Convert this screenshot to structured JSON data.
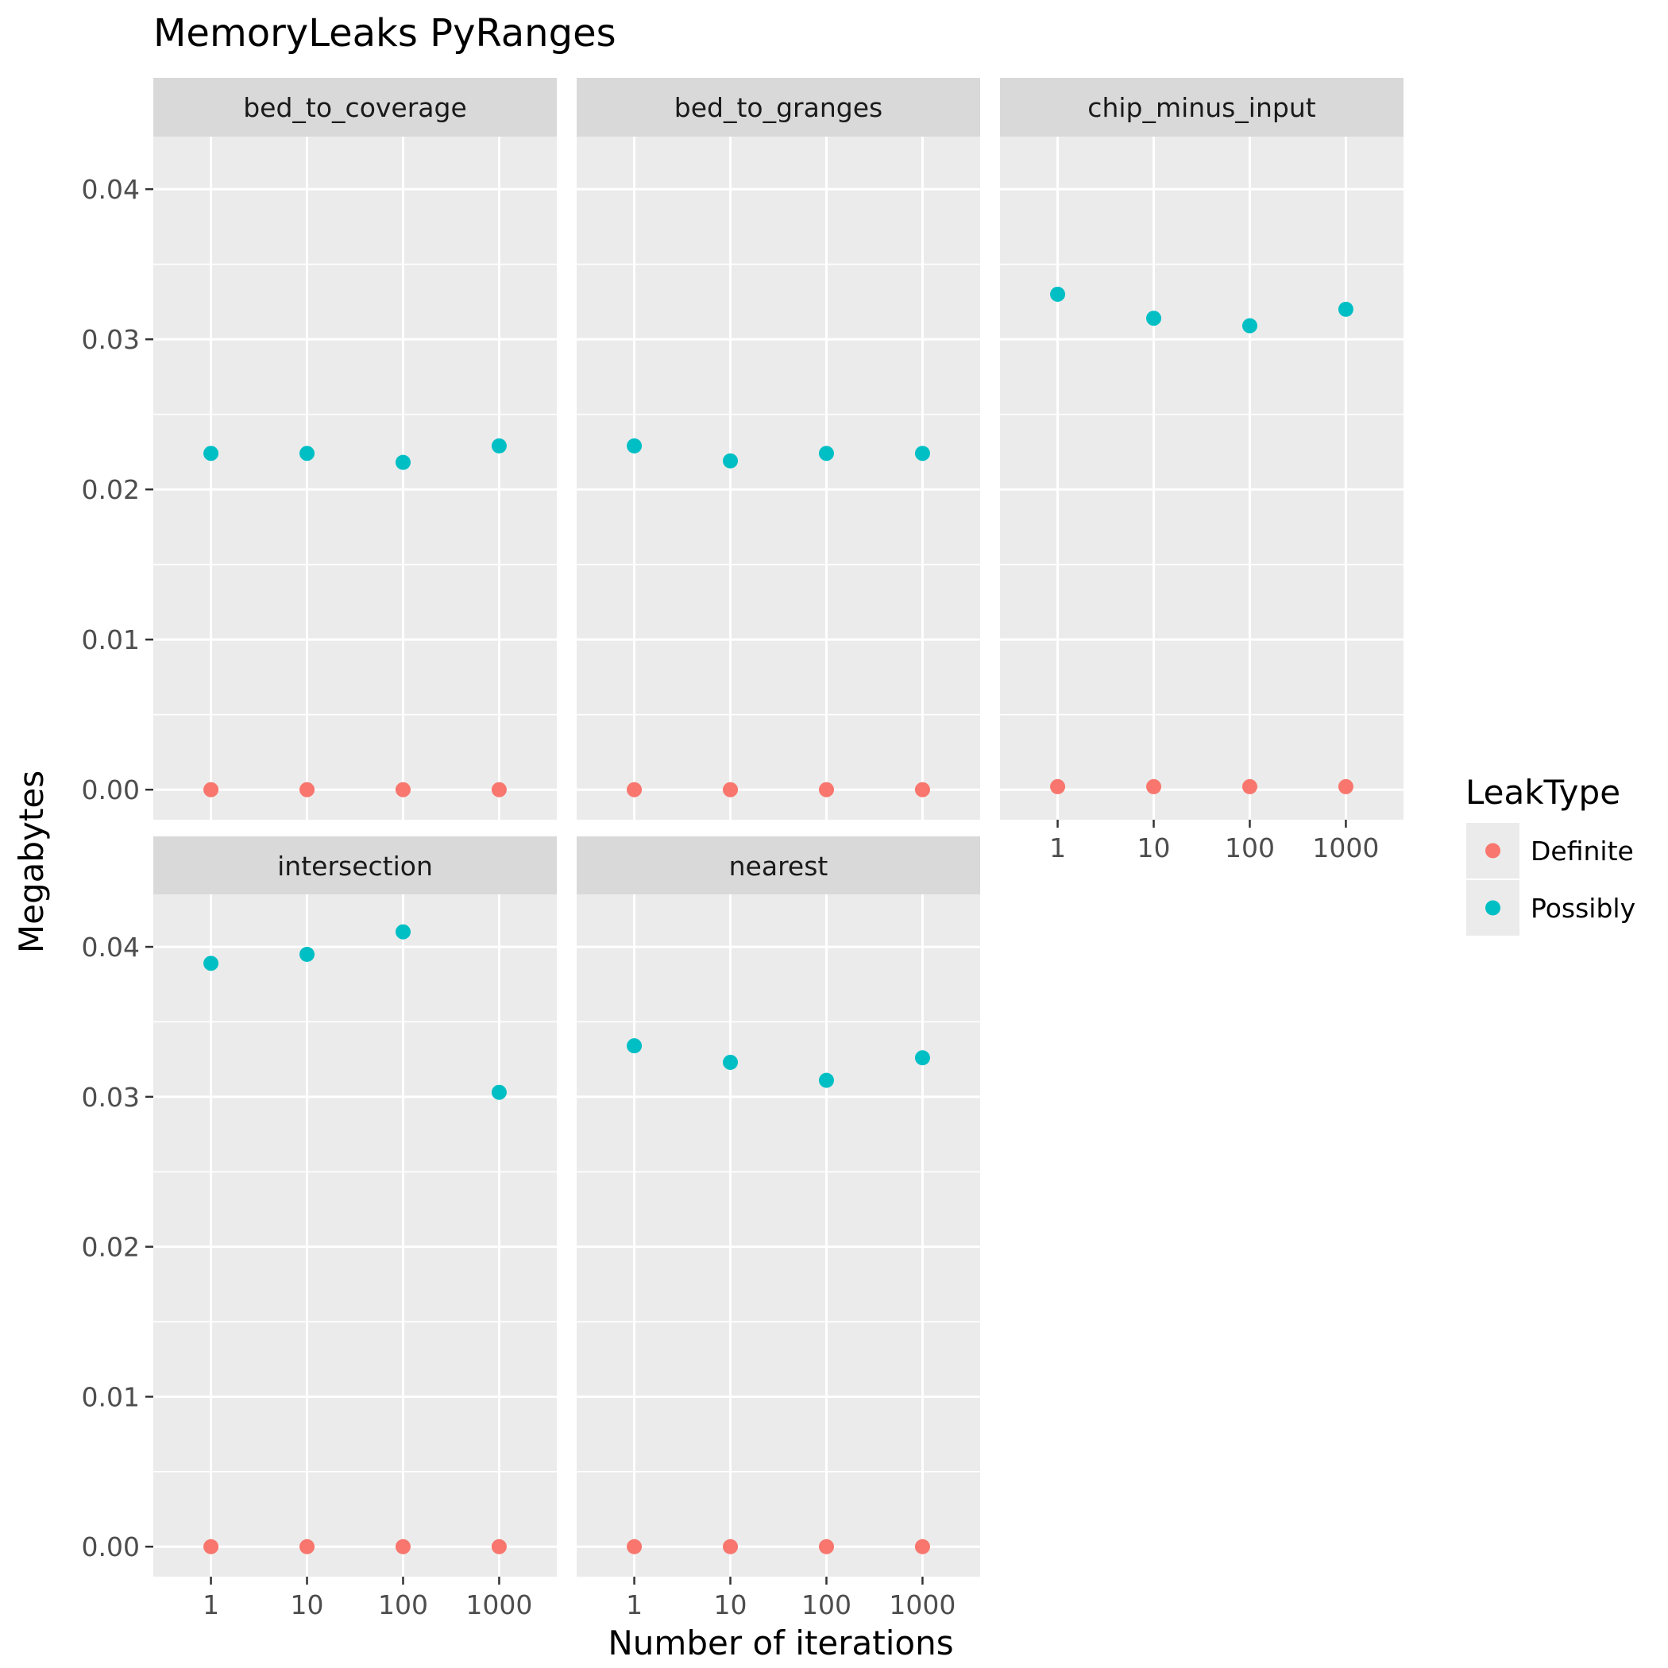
{
  "chart_data": {
    "type": "scatter",
    "title": "MemoryLeaks PyRanges",
    "xlabel": "Number of iterations",
    "ylabel": "Megabytes",
    "x_categories": [
      "1",
      "10",
      "100",
      "1000"
    ],
    "ylim": [
      -0.002,
      0.0435
    ],
    "y_ticks": [
      0.0,
      0.01,
      0.02,
      0.03,
      0.04
    ],
    "y_tick_labels": [
      "0.00",
      "0.01",
      "0.02",
      "0.03",
      "0.04"
    ],
    "grid": true,
    "legend": {
      "title": "LeakType",
      "position": "right",
      "entries": [
        {
          "name": "Definite",
          "color": "#F8766D"
        },
        {
          "name": "Possibly",
          "color": "#00BFC4"
        }
      ]
    },
    "facets": [
      {
        "name": "bed_to_coverage",
        "series": [
          {
            "name": "Definite",
            "values": [
              0.0,
              0.0,
              0.0,
              0.0
            ]
          },
          {
            "name": "Possibly",
            "values": [
              0.0224,
              0.0224,
              0.0218,
              0.0229
            ]
          }
        ]
      },
      {
        "name": "bed_to_granges",
        "series": [
          {
            "name": "Definite",
            "values": [
              0.0,
              0.0,
              0.0,
              0.0
            ]
          },
          {
            "name": "Possibly",
            "values": [
              0.0229,
              0.0219,
              0.0224,
              0.0224
            ]
          }
        ]
      },
      {
        "name": "chip_minus_input",
        "series": [
          {
            "name": "Definite",
            "values": [
              0.0002,
              0.0002,
              0.0002,
              0.0002
            ]
          },
          {
            "name": "Possibly",
            "values": [
              0.033,
              0.0314,
              0.0309,
              0.032
            ]
          }
        ]
      },
      {
        "name": "intersection",
        "series": [
          {
            "name": "Definite",
            "values": [
              0.0,
              0.0,
              0.0,
              0.0
            ]
          },
          {
            "name": "Possibly",
            "values": [
              0.0389,
              0.0395,
              0.041,
              0.0303
            ]
          }
        ]
      },
      {
        "name": "nearest",
        "series": [
          {
            "name": "Definite",
            "values": [
              0.0,
              0.0,
              0.0,
              0.0
            ]
          },
          {
            "name": "Possibly",
            "values": [
              0.0334,
              0.0323,
              0.0311,
              0.0326
            ]
          }
        ]
      }
    ]
  }
}
